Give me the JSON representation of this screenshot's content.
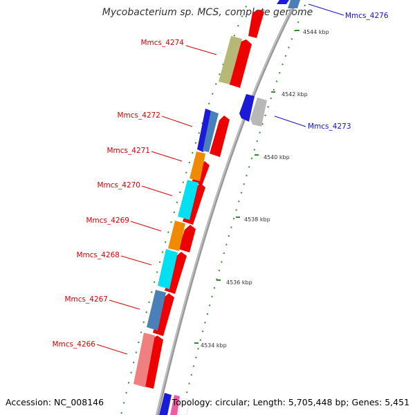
{
  "map_title": "Mycobacterium sp. MCS, complete genome",
  "accession_text": "Accession: NC_008146",
  "summary_text": "Topology: circular; Length: 5,705,448 bp; Genes: 5,451",
  "colors": {
    "backbone": "#9a9a9a",
    "tick": "#2e8b2e",
    "label_red": "#d40000",
    "label_blue": "#1010d0"
  },
  "ticks": [
    {
      "label": "4544 kbp"
    },
    {
      "label": "4542 kbp"
    },
    {
      "label": "4540 kbp"
    },
    {
      "label": "4538 kbp"
    },
    {
      "label": "4536 kbp"
    },
    {
      "label": "4534 kbp"
    }
  ],
  "gene_labels": [
    {
      "name": "Mmcs_4276",
      "color": "#1010d0"
    },
    {
      "name": "Mmcs_4274",
      "color": "#d40000"
    },
    {
      "name": "Mmcs_4273",
      "color": "#1010d0"
    },
    {
      "name": "Mmcs_4272",
      "color": "#d40000"
    },
    {
      "name": "Mmcs_4271",
      "color": "#d40000"
    },
    {
      "name": "Mmcs_4270",
      "color": "#d40000"
    },
    {
      "name": "Mmcs_4269",
      "color": "#d40000"
    },
    {
      "name": "Mmcs_4268",
      "color": "#d40000"
    },
    {
      "name": "Mmcs_4267",
      "color": "#d40000"
    },
    {
      "name": "Mmcs_4266",
      "color": "#d40000"
    }
  ],
  "cog_colors": [
    "#b8b876",
    "#1a1ad8",
    "#4a80b8",
    "#f08a00",
    "#00e0f0",
    "#f08080",
    "#f05aa0",
    "#b8b8b8"
  ],
  "strand_color": "#ee0000"
}
